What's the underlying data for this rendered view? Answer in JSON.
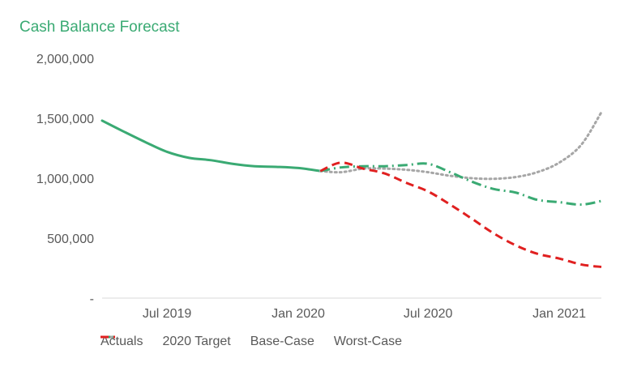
{
  "chart_data": {
    "type": "line",
    "title": "Cash Balance Forecast",
    "xlabel": "",
    "ylabel": "",
    "ylim": [
      0,
      2000000
    ],
    "y_ticks": [
      {
        "value": 0,
        "label": "-"
      },
      {
        "value": 500000,
        "label": "500,000"
      },
      {
        "value": 1000000,
        "label": "1,000,000"
      },
      {
        "value": 1500000,
        "label": "1,500,000"
      },
      {
        "value": 2000000,
        "label": "2,000,000"
      }
    ],
    "xlim": [
      "2019-04-01",
      "2021-03-01"
    ],
    "x_ticks": [
      {
        "value": "2019-07-01",
        "label": "Jul 2019"
      },
      {
        "value": "2020-01-01",
        "label": "Jan 2020"
      },
      {
        "value": "2020-07-01",
        "label": "Jul 2020"
      },
      {
        "value": "2021-01-01",
        "label": "Jan 2021"
      }
    ],
    "grid": false,
    "legend_position": "bottom",
    "series": [
      {
        "name": "Actuals",
        "color": "#3aaa73",
        "dash": "solid",
        "x": [
          "2019-04-01",
          "2019-05-01",
          "2019-06-01",
          "2019-07-01",
          "2019-08-01",
          "2019-09-01",
          "2019-10-01",
          "2019-11-01",
          "2019-12-01",
          "2020-01-01",
          "2020-02-01"
        ],
        "y": [
          1480000,
          1390000,
          1300000,
          1220000,
          1170000,
          1150000,
          1120000,
          1100000,
          1095000,
          1085000,
          1060000
        ]
      },
      {
        "name": "2020 Target",
        "color": "#a6a6a6",
        "dash": "dotted",
        "x": [
          "2020-02-01",
          "2020-03-01",
          "2020-04-01",
          "2020-05-01",
          "2020-06-01",
          "2020-07-01",
          "2020-08-01",
          "2020-09-01",
          "2020-10-01",
          "2020-11-01",
          "2020-12-01",
          "2021-01-01",
          "2021-02-01",
          "2021-03-01"
        ],
        "y": [
          1060000,
          1050000,
          1080000,
          1080000,
          1070000,
          1050000,
          1020000,
          1000000,
          995000,
          1010000,
          1050000,
          1130000,
          1280000,
          1550000
        ]
      },
      {
        "name": "Base-Case",
        "color": "#3aaa73",
        "dash": "dashdot",
        "x": [
          "2020-02-01",
          "2020-03-01",
          "2020-04-01",
          "2020-05-01",
          "2020-06-01",
          "2020-07-01",
          "2020-08-01",
          "2020-09-01",
          "2020-10-01",
          "2020-11-01",
          "2020-12-01",
          "2021-01-01",
          "2021-02-01",
          "2021-03-01"
        ],
        "y": [
          1060000,
          1090000,
          1100000,
          1100000,
          1110000,
          1120000,
          1050000,
          970000,
          910000,
          880000,
          820000,
          800000,
          780000,
          810000
        ]
      },
      {
        "name": "Worst-Case",
        "color": "#e02020",
        "dash": "dashed",
        "x": [
          "2020-02-01",
          "2020-03-01",
          "2020-04-01",
          "2020-05-01",
          "2020-06-01",
          "2020-07-01",
          "2020-08-01",
          "2020-09-01",
          "2020-10-01",
          "2020-11-01",
          "2020-12-01",
          "2021-01-01",
          "2021-02-01",
          "2021-03-01"
        ],
        "y": [
          1060000,
          1130000,
          1080000,
          1040000,
          960000,
          890000,
          780000,
          660000,
          540000,
          440000,
          370000,
          330000,
          280000,
          260000
        ]
      }
    ]
  }
}
